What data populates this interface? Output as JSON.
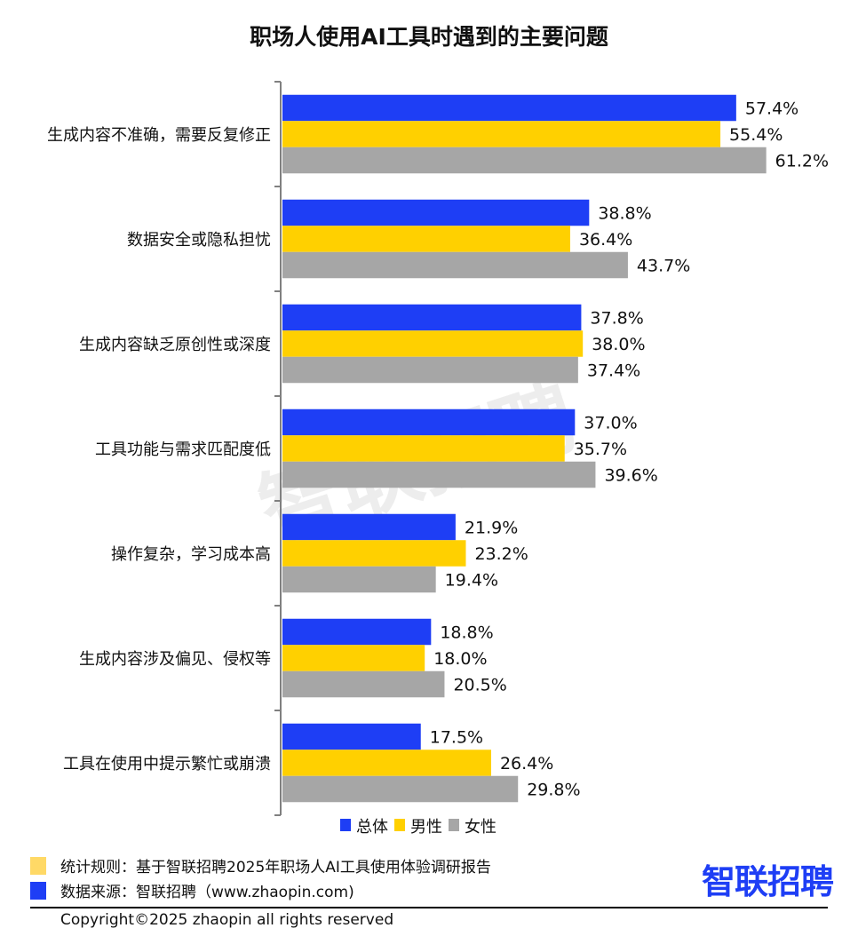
{
  "chart_data": {
    "type": "bar",
    "orientation": "horizontal",
    "title": "职场人使用AI工具时遇到的主要问题",
    "categories": [
      "生成内容不准确，需要反复修正",
      "数据安全或隐私担忧",
      "生成内容缺乏原创性或深度",
      "工具功能与需求匹配度低",
      "操作复杂，学习成本高",
      "生成内容涉及偏见、侵权等",
      "工具在使用中提示繁忙或崩溃"
    ],
    "series": [
      {
        "name": "总体",
        "color": "#1E3EF5",
        "values": [
          57.4,
          38.8,
          37.8,
          37.0,
          21.9,
          18.8,
          17.5
        ]
      },
      {
        "name": "男性",
        "color": "#FFD000",
        "values": [
          55.4,
          36.4,
          38.0,
          35.7,
          23.2,
          18.0,
          26.4
        ]
      },
      {
        "name": "女性",
        "color": "#A6A6A6",
        "values": [
          61.2,
          43.7,
          37.4,
          39.6,
          19.4,
          20.5,
          29.8
        ]
      }
    ],
    "value_suffix": "%",
    "xlim": [
      0,
      70
    ],
    "grid": false,
    "legend_position": "bottom"
  },
  "footer": {
    "rule_label": "统计规则：基于智联招聘2025年职场人AI工具使用体验调研报告",
    "source_label": "数据来源：智联招聘（www.zhaopin.com)",
    "rule_color": "#FFD966",
    "source_color": "#1E3EF5",
    "copyright": "Copyright©2025 zhaopin all rights reserved"
  },
  "logo": {
    "text": "智联招聘",
    "watermark": "智联招聘"
  }
}
